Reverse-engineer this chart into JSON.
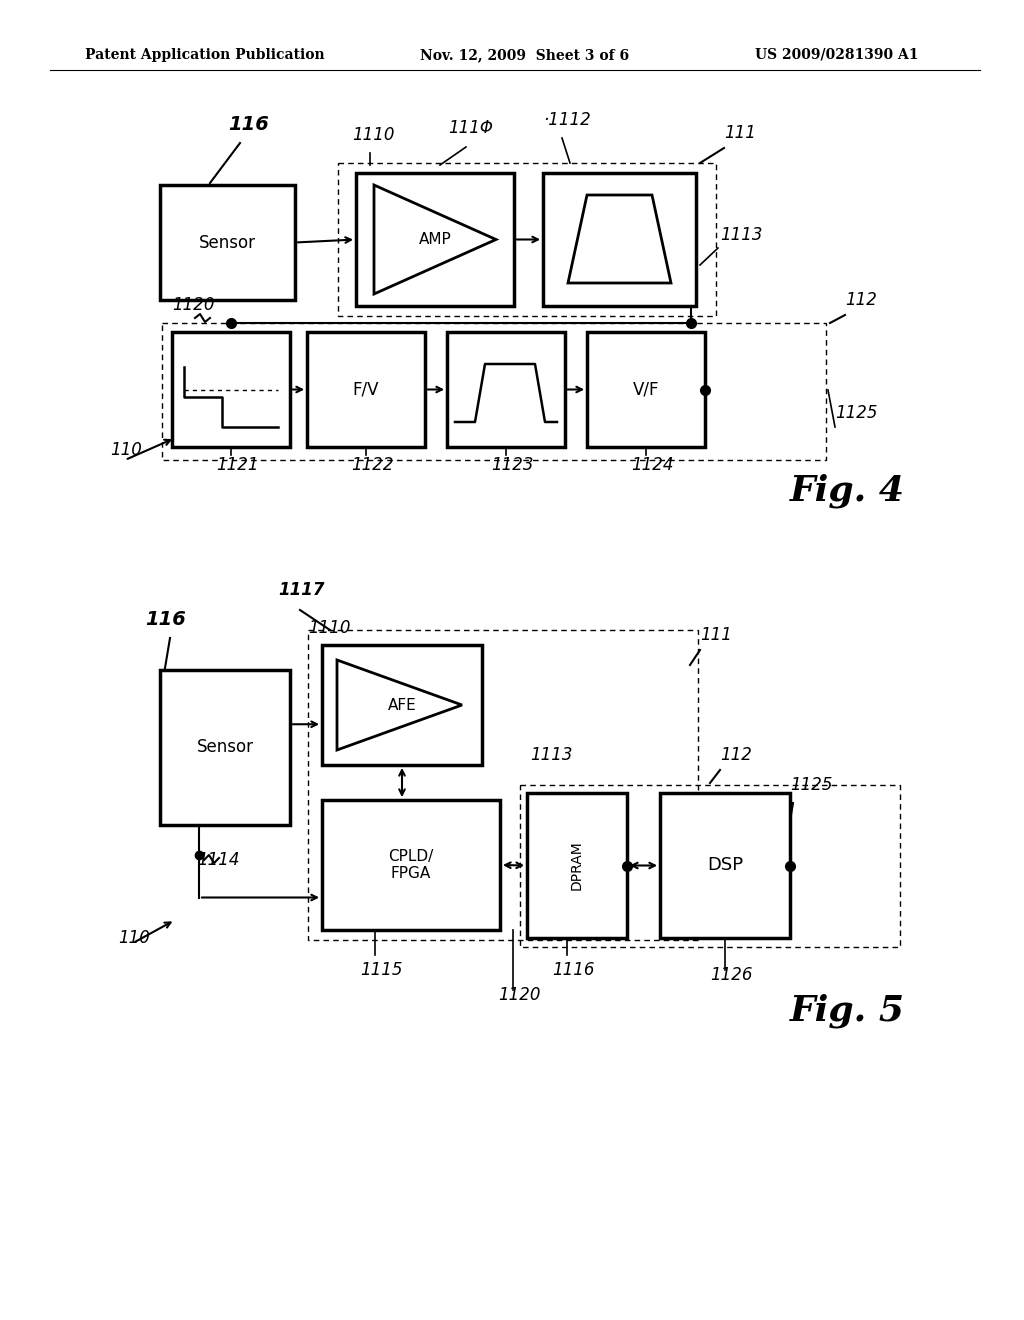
{
  "bg_color": "#ffffff",
  "header_left": "Patent Application Publication",
  "header_center": "Nov. 12, 2009  Sheet 3 of 6",
  "header_right": "US 2009/0281390 A1",
  "fig4_label": "Fig. 4",
  "fig5_label": "Fig. 5"
}
